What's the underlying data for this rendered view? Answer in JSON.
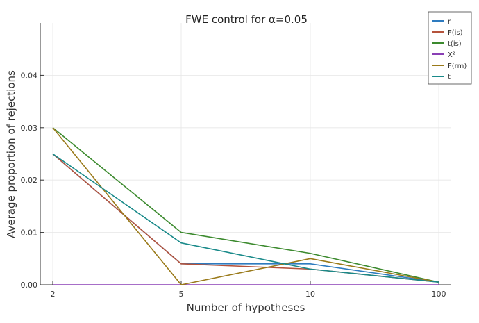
{
  "chart_data": {
    "type": "line",
    "title": "FWE control for α=0.05",
    "xlabel": "Number of hypotheses",
    "ylabel": "Average proportion of rejections",
    "x": [
      "2",
      "5",
      "10",
      "100"
    ],
    "x_scale": "categorical-evenly-spaced",
    "yticks": [
      "0.00",
      "0.01",
      "0.02",
      "0.03",
      "0.04"
    ],
    "ylim": [
      0,
      0.05
    ],
    "grid": true,
    "legend_position": "top-right",
    "series": [
      {
        "name": "r",
        "color": "#2e7bbf",
        "values": [
          0.025,
          0.004,
          0.004,
          0.0005
        ]
      },
      {
        "name": "F(is)",
        "color": "#b5533c",
        "values": [
          0.025,
          0.004,
          0.003,
          0.0005
        ]
      },
      {
        "name": "t(is)",
        "color": "#3c8a2e",
        "values": [
          0.03,
          0.01,
          0.006,
          0.0005
        ]
      },
      {
        "name": "X²",
        "color": "#8a3fb5",
        "values": [
          0.0,
          0.0,
          0.0,
          0.0
        ]
      },
      {
        "name": "F(rm)",
        "color": "#9a7a1a",
        "values": [
          0.03,
          0.0,
          0.005,
          0.0005
        ]
      },
      {
        "name": "t",
        "color": "#1a8a8a",
        "values": [
          0.025,
          0.008,
          0.003,
          0.0005
        ]
      }
    ]
  }
}
